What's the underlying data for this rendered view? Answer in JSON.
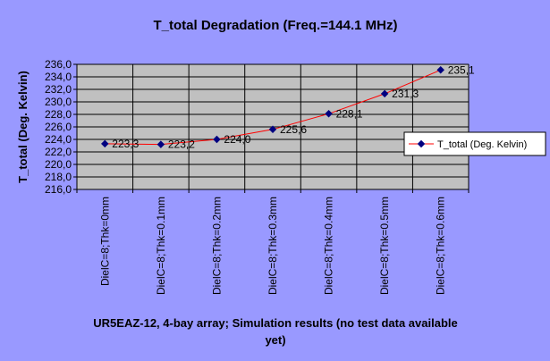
{
  "chart_data": {
    "type": "line",
    "title": "T_total Degradation (Freq.=144.1 MHz)",
    "xlabel_line1": "UR5EAZ-12, 4-bay array; Simulation results  (no test data available",
    "xlabel_line2": "yet)",
    "ylabel": "T_total (Deg. Kelvin)",
    "categories": [
      "DielC=8;Thk=0mm",
      "DielC=8;Thk=0.1mm",
      "DielC=8;Thk=0.2mm",
      "DielC=8;Thk=0.3mm",
      "DielC=8;Thk=0.4mm",
      "DielC=8;Thk=0.5mm",
      "DielC=8;Thk=0.6mm"
    ],
    "y_ticks": [
      "216,0",
      "218,0",
      "220,0",
      "222,0",
      "224,0",
      "226,0",
      "228,0",
      "230,0",
      "232,0",
      "234,0",
      "236,0"
    ],
    "ylim": [
      216,
      236
    ],
    "grid": "horizontal and vertical",
    "legend_position": "right",
    "series": [
      {
        "name": "T_total (Deg. Kelvin)",
        "values": [
          223.3,
          223.2,
          224.0,
          225.6,
          228.1,
          231.3,
          235.1
        ],
        "labels": [
          "223,3",
          "223,2",
          "224,0",
          "225,6",
          "228,1",
          "231,3",
          "235,1"
        ],
        "line_color": "#ff0000",
        "marker_color": "#000080"
      }
    ],
    "colors": {
      "background": "#9999ff",
      "plot_area": "#c0c0c0",
      "gridline": "#000000"
    }
  }
}
